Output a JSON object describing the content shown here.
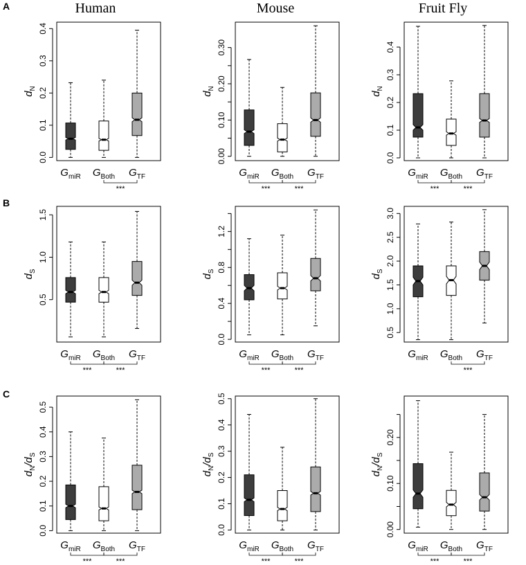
{
  "figure": {
    "columns": [
      "Human",
      "Mouse",
      "Fruit Fly"
    ],
    "rows": [
      "A",
      "B",
      "C"
    ]
  },
  "colors": {
    "miR": "#3d3d3d",
    "Both": "#ffffff",
    "TF": "#ababab",
    "stroke": "#000000"
  },
  "chart_data": [
    {
      "type": "box",
      "panel": "A-Human",
      "species": "Human",
      "row": "A",
      "ylabel": {
        "base": "d",
        "sub": "N",
        "mode": "single"
      },
      "ylim": [
        -0.01,
        0.42
      ],
      "yticks": [
        0.0,
        0.1,
        0.2,
        0.3,
        0.4
      ],
      "tick_labels": [
        "0.0",
        "0.1",
        "0.2",
        "0.3",
        "0.4"
      ],
      "categories": [
        {
          "base": "G",
          "sub": "miR",
          "fill": "#3d3d3d",
          "min": 0.0,
          "q1": 0.025,
          "median": 0.058,
          "q3": 0.107,
          "max": 0.232,
          "notch": [
            0.054,
            0.062
          ]
        },
        {
          "base": "G",
          "sub": "Both",
          "fill": "#ffffff",
          "min": 0.0,
          "q1": 0.022,
          "median": 0.055,
          "q3": 0.113,
          "max": 0.24,
          "notch": [
            0.051,
            0.059
          ]
        },
        {
          "base": "G",
          "sub": "TF",
          "fill": "#ababab",
          "min": 0.0,
          "q1": 0.068,
          "median": 0.117,
          "q3": 0.2,
          "max": 0.395,
          "notch": [
            0.111,
            0.123
          ]
        }
      ],
      "significance": [
        {
          "pair": [
            1,
            2
          ],
          "label": "***"
        }
      ]
    },
    {
      "type": "box",
      "panel": "A-Mouse",
      "species": "Mouse",
      "row": "A",
      "ylabel": {
        "base": "d",
        "sub": "N",
        "mode": "single"
      },
      "ylim": [
        -0.012,
        0.37
      ],
      "yticks": [
        0.0,
        0.05,
        0.1,
        0.15,
        0.2,
        0.25,
        0.3
      ],
      "tick_labels": [
        "0.00",
        "0.10",
        "0.20",
        "0.30"
      ],
      "tick_label_values": [
        0.0,
        0.1,
        0.2,
        0.3
      ],
      "categories": [
        {
          "base": "G",
          "sub": "miR",
          "fill": "#3d3d3d",
          "min": 0.0,
          "q1": 0.03,
          "median": 0.068,
          "q3": 0.128,
          "max": 0.267,
          "notch": [
            0.063,
            0.073
          ]
        },
        {
          "base": "G",
          "sub": "Both",
          "fill": "#ffffff",
          "min": 0.0,
          "q1": 0.012,
          "median": 0.046,
          "q3": 0.09,
          "max": 0.19,
          "notch": [
            0.042,
            0.05
          ]
        },
        {
          "base": "G",
          "sub": "TF",
          "fill": "#ababab",
          "min": 0.0,
          "q1": 0.055,
          "median": 0.1,
          "q3": 0.175,
          "max": 0.36,
          "notch": [
            0.094,
            0.106
          ]
        }
      ],
      "significance": [
        {
          "pair": [
            0,
            1
          ],
          "label": "***"
        },
        {
          "pair": [
            1,
            2
          ],
          "label": "***"
        }
      ]
    },
    {
      "type": "box",
      "panel": "A-Fly",
      "species": "Fruit Fly",
      "row": "A",
      "ylabel": {
        "base": "d",
        "sub": "N",
        "mode": "single"
      },
      "ylim": [
        -0.01,
        0.49
      ],
      "yticks": [
        0.0,
        0.1,
        0.2,
        0.3,
        0.4
      ],
      "tick_labels": [
        "0.0",
        "0.1",
        "0.2",
        "0.3",
        "0.4"
      ],
      "categories": [
        {
          "base": "G",
          "sub": "miR",
          "fill": "#3d3d3d",
          "min": 0.0,
          "q1": 0.075,
          "median": 0.11,
          "q3": 0.232,
          "max": 0.475,
          "notch": [
            0.1,
            0.12
          ]
        },
        {
          "base": "G",
          "sub": "Both",
          "fill": "#ffffff",
          "min": 0.0,
          "q1": 0.045,
          "median": 0.088,
          "q3": 0.14,
          "max": 0.278,
          "notch": [
            0.082,
            0.094
          ]
        },
        {
          "base": "G",
          "sub": "TF",
          "fill": "#ababab",
          "min": 0.0,
          "q1": 0.075,
          "median": 0.135,
          "q3": 0.232,
          "max": 0.478,
          "notch": [
            0.128,
            0.142
          ]
        }
      ],
      "significance": [
        {
          "pair": [
            0,
            1
          ],
          "label": "***"
        },
        {
          "pair": [
            1,
            2
          ],
          "label": "***"
        }
      ]
    },
    {
      "type": "box",
      "panel": "B-Human",
      "species": "Human",
      "row": "B",
      "ylabel": {
        "base": "d",
        "sub": "S",
        "mode": "single"
      },
      "ylim": [
        0.0,
        1.6
      ],
      "yticks": [
        0.5,
        1.0,
        1.5
      ],
      "tick_labels": [
        "0.5",
        "1.0",
        "1.5"
      ],
      "categories": [
        {
          "base": "G",
          "sub": "miR",
          "fill": "#3d3d3d",
          "min": 0.06,
          "q1": 0.47,
          "median": 0.59,
          "q3": 0.76,
          "max": 1.18,
          "notch": [
            0.57,
            0.61
          ]
        },
        {
          "base": "G",
          "sub": "Both",
          "fill": "#ffffff",
          "min": 0.06,
          "q1": 0.47,
          "median": 0.59,
          "q3": 0.76,
          "max": 1.18,
          "notch": [
            0.57,
            0.61
          ]
        },
        {
          "base": "G",
          "sub": "TF",
          "fill": "#ababab",
          "min": 0.16,
          "q1": 0.55,
          "median": 0.7,
          "q3": 0.95,
          "max": 1.54,
          "notch": [
            0.67,
            0.73
          ]
        }
      ],
      "significance": [
        {
          "pair": [
            0,
            1
          ],
          "label": "***"
        },
        {
          "pair": [
            1,
            2
          ],
          "label": "***"
        }
      ]
    },
    {
      "type": "box",
      "panel": "B-Mouse",
      "species": "Mouse",
      "row": "B",
      "ylabel": {
        "base": "d",
        "sub": "S",
        "mode": "single"
      },
      "ylim": [
        -0.03,
        1.48
      ],
      "yticks": [
        0.0,
        0.2,
        0.4,
        0.6,
        0.8,
        1.0,
        1.2,
        1.4
      ],
      "tick_labels": [
        "0.0",
        "0.4",
        "0.8",
        "1.2"
      ],
      "tick_label_values": [
        0.0,
        0.4,
        0.8,
        1.2
      ],
      "categories": [
        {
          "base": "G",
          "sub": "miR",
          "fill": "#3d3d3d",
          "min": 0.05,
          "q1": 0.44,
          "median": 0.57,
          "q3": 0.72,
          "max": 1.12,
          "notch": [
            0.54,
            0.6
          ]
        },
        {
          "base": "G",
          "sub": "Both",
          "fill": "#ffffff",
          "min": 0.05,
          "q1": 0.45,
          "median": 0.57,
          "q3": 0.74,
          "max": 1.16,
          "notch": [
            0.55,
            0.59
          ]
        },
        {
          "base": "G",
          "sub": "TF",
          "fill": "#ababab",
          "min": 0.15,
          "q1": 0.54,
          "median": 0.68,
          "q3": 0.9,
          "max": 1.44,
          "notch": [
            0.65,
            0.71
          ]
        }
      ],
      "significance": [
        {
          "pair": [
            0,
            1
          ],
          "label": "***"
        },
        {
          "pair": [
            1,
            2
          ],
          "label": "***"
        }
      ]
    },
    {
      "type": "box",
      "panel": "B-Fly",
      "species": "Fruit Fly",
      "row": "B",
      "ylabel": {
        "base": "d",
        "sub": "S",
        "mode": "single"
      },
      "ylim": [
        0.3,
        3.15
      ],
      "yticks": [
        0.5,
        1.0,
        1.5,
        2.0,
        2.5,
        3.0
      ],
      "tick_labels": [
        "0.5",
        "1.0",
        "1.5",
        "2.0",
        "2.5",
        "3.0"
      ],
      "categories": [
        {
          "base": "G",
          "sub": "miR",
          "fill": "#3d3d3d",
          "min": 0.35,
          "q1": 1.25,
          "median": 1.58,
          "q3": 1.9,
          "max": 2.78,
          "notch": [
            1.5,
            1.66
          ]
        },
        {
          "base": "G",
          "sub": "Both",
          "fill": "#ffffff",
          "min": 0.35,
          "q1": 1.28,
          "median": 1.6,
          "q3": 1.9,
          "max": 2.82,
          "notch": [
            1.52,
            1.68
          ]
        },
        {
          "base": "G",
          "sub": "TF",
          "fill": "#ababab",
          "min": 0.7,
          "q1": 1.6,
          "median": 1.9,
          "q3": 2.2,
          "max": 3.08,
          "notch": [
            1.82,
            1.98
          ]
        }
      ],
      "significance": [
        {
          "pair": [
            1,
            2
          ],
          "label": "***"
        }
      ]
    },
    {
      "type": "box",
      "panel": "C-Human",
      "species": "Human",
      "row": "C",
      "ylabel": {
        "base": "d",
        "sub": "N",
        "sep": "/",
        "base2": "d",
        "sub2": "S",
        "mode": "ratio"
      },
      "ylim": [
        -0.01,
        0.545
      ],
      "yticks": [
        0.0,
        0.1,
        0.2,
        0.3,
        0.4,
        0.5
      ],
      "tick_labels": [
        "0.0",
        "0.1",
        "0.2",
        "0.3",
        "0.4",
        "0.5"
      ],
      "categories": [
        {
          "base": "G",
          "sub": "miR",
          "fill": "#3d3d3d",
          "min": 0.0,
          "q1": 0.045,
          "median": 0.1,
          "q3": 0.185,
          "max": 0.4,
          "notch": [
            0.093,
            0.107
          ]
        },
        {
          "base": "G",
          "sub": "Both",
          "fill": "#ffffff",
          "min": 0.0,
          "q1": 0.04,
          "median": 0.09,
          "q3": 0.178,
          "max": 0.375,
          "notch": [
            0.084,
            0.096
          ]
        },
        {
          "base": "G",
          "sub": "TF",
          "fill": "#ababab",
          "min": 0.0,
          "q1": 0.085,
          "median": 0.157,
          "q3": 0.265,
          "max": 0.53,
          "notch": [
            0.15,
            0.164
          ]
        }
      ],
      "significance": [
        {
          "pair": [
            0,
            1
          ],
          "label": "***"
        },
        {
          "pair": [
            1,
            2
          ],
          "label": "***"
        }
      ]
    },
    {
      "type": "box",
      "panel": "C-Mouse",
      "species": "Mouse",
      "row": "C",
      "ylabel": {
        "base": "d",
        "sub": "N",
        "sep": "/",
        "base2": "d",
        "sub2": "S",
        "mode": "ratio"
      },
      "ylim": [
        -0.012,
        0.51
      ],
      "yticks": [
        0.0,
        0.1,
        0.2,
        0.3,
        0.4,
        0.5
      ],
      "tick_labels": [
        "0.0",
        "0.1",
        "0.2",
        "0.3",
        "0.4",
        "0.5"
      ],
      "categories": [
        {
          "base": "G",
          "sub": "miR",
          "fill": "#3d3d3d",
          "min": 0.0,
          "q1": 0.055,
          "median": 0.115,
          "q3": 0.21,
          "max": 0.44,
          "notch": [
            0.108,
            0.122
          ]
        },
        {
          "base": "G",
          "sub": "Both",
          "fill": "#ffffff",
          "min": 0.0,
          "q1": 0.035,
          "median": 0.08,
          "q3": 0.15,
          "max": 0.315,
          "notch": [
            0.074,
            0.086
          ]
        },
        {
          "base": "G",
          "sub": "TF",
          "fill": "#ababab",
          "min": 0.0,
          "q1": 0.07,
          "median": 0.14,
          "q3": 0.24,
          "max": 0.5,
          "notch": [
            0.133,
            0.147
          ]
        }
      ],
      "significance": [
        {
          "pair": [
            0,
            1
          ],
          "label": "***"
        },
        {
          "pair": [
            1,
            2
          ],
          "label": "***"
        }
      ]
    },
    {
      "type": "box",
      "panel": "C-Fly",
      "species": "Fruit Fly",
      "row": "C",
      "ylabel": {
        "base": "d",
        "sub": "N",
        "sep": "/",
        "base2": "d",
        "sub2": "S",
        "mode": "ratio"
      },
      "ylim": [
        -0.008,
        0.29
      ],
      "yticks": [
        0.0,
        0.05,
        0.1,
        0.15,
        0.2,
        0.25
      ],
      "tick_labels": [
        "0.00",
        "0.10",
        "0.20"
      ],
      "tick_label_values": [
        0.0,
        0.1,
        0.2
      ],
      "categories": [
        {
          "base": "G",
          "sub": "miR",
          "fill": "#3d3d3d",
          "min": 0.005,
          "q1": 0.045,
          "median": 0.078,
          "q3": 0.143,
          "max": 0.28,
          "notch": [
            0.07,
            0.086
          ]
        },
        {
          "base": "G",
          "sub": "Both",
          "fill": "#ffffff",
          "min": 0.0,
          "q1": 0.03,
          "median": 0.054,
          "q3": 0.085,
          "max": 0.168,
          "notch": [
            0.049,
            0.059
          ]
        },
        {
          "base": "G",
          "sub": "TF",
          "fill": "#ababab",
          "min": 0.0,
          "q1": 0.04,
          "median": 0.07,
          "q3": 0.123,
          "max": 0.25,
          "notch": [
            0.064,
            0.076
          ]
        }
      ],
      "significance": [
        {
          "pair": [
            0,
            1
          ],
          "label": "***"
        },
        {
          "pair": [
            1,
            2
          ],
          "label": "***"
        }
      ]
    }
  ]
}
